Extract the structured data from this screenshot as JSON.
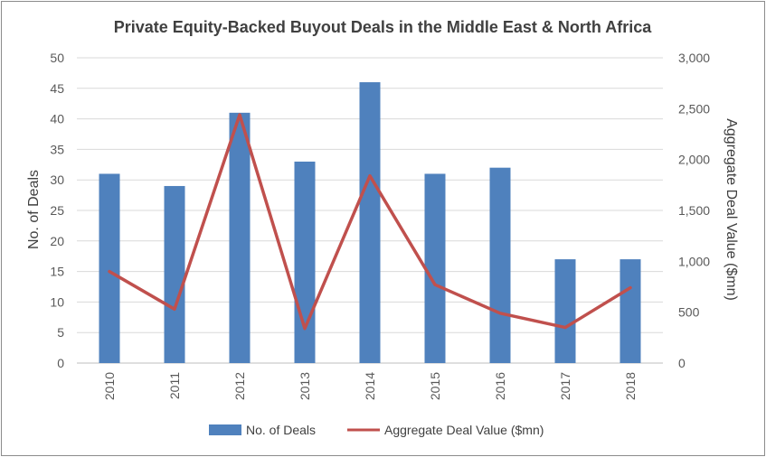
{
  "chart_data": {
    "type": "bar",
    "title": "Private Equity-Backed Buyout Deals in the Middle East & North Africa",
    "categories": [
      "2010",
      "2011",
      "2012",
      "2013",
      "2014",
      "2015",
      "2016",
      "2017",
      "2018"
    ],
    "series": [
      {
        "name": "No. of Deals",
        "type": "bar",
        "axis": "left",
        "color": "#4f81bd",
        "values": [
          31,
          29,
          41,
          33,
          46,
          31,
          32,
          17,
          17
        ]
      },
      {
        "name": "Aggregate Deal Value ($mn)",
        "type": "line",
        "axis": "right",
        "color": "#c0504d",
        "values": [
          900,
          530,
          2440,
          340,
          1840,
          770,
          490,
          350,
          740
        ]
      }
    ],
    "ylabel": "No. of Deals",
    "ylim": [
      0,
      50
    ],
    "yticks": [
      0,
      5,
      10,
      15,
      20,
      25,
      30,
      35,
      40,
      45,
      50
    ],
    "y2label": "Aggregate Deal Value ($mn)",
    "y2lim": [
      0,
      3000
    ],
    "y2ticks": [
      "0",
      "500",
      "1,000",
      "1,500",
      "2,000",
      "2,500",
      "3,000"
    ],
    "grid": true,
    "legend": "bottom"
  }
}
